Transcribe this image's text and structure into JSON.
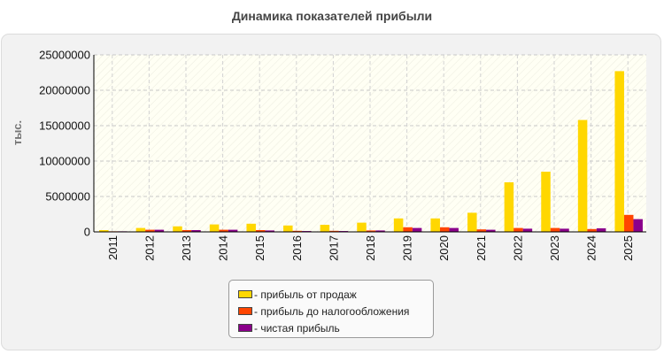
{
  "chart_title": "Динамика показателей прибыли",
  "chart_data": {
    "type": "bar",
    "title": "Динамика показателей прибыли",
    "xlabel": "",
    "ylabel": "тыс.",
    "ylim": [
      0,
      25000000
    ],
    "yticks": [
      "0",
      "5000000",
      "10000000",
      "15000000",
      "20000000",
      "25000000"
    ],
    "grid": true,
    "legend_position": "bottom",
    "categories": [
      "2011",
      "2012",
      "2013",
      "2014",
      "2015",
      "2016",
      "2017",
      "2018",
      "2019",
      "2020",
      "2021",
      "2022",
      "2023",
      "2024",
      "2025"
    ],
    "series": [
      {
        "name": "- прибыль от продаж",
        "color": "#ffd700",
        "values": [
          250000,
          550000,
          780000,
          1050000,
          1150000,
          900000,
          1000000,
          1300000,
          1900000,
          1900000,
          2700000,
          7000000,
          8500000,
          15800000,
          22700000
        ]
      },
      {
        "name": "- прибыль до налогообложения",
        "color": "#ff4500",
        "values": [
          80000,
          300000,
          250000,
          300000,
          250000,
          150000,
          150000,
          200000,
          650000,
          650000,
          350000,
          550000,
          550000,
          400000,
          2400000
        ]
      },
      {
        "name": "- чистая прибыль",
        "color": "#8b008b",
        "values": [
          80000,
          300000,
          250000,
          300000,
          200000,
          120000,
          120000,
          200000,
          550000,
          550000,
          300000,
          450000,
          450000,
          500000,
          1800000
        ]
      }
    ]
  }
}
